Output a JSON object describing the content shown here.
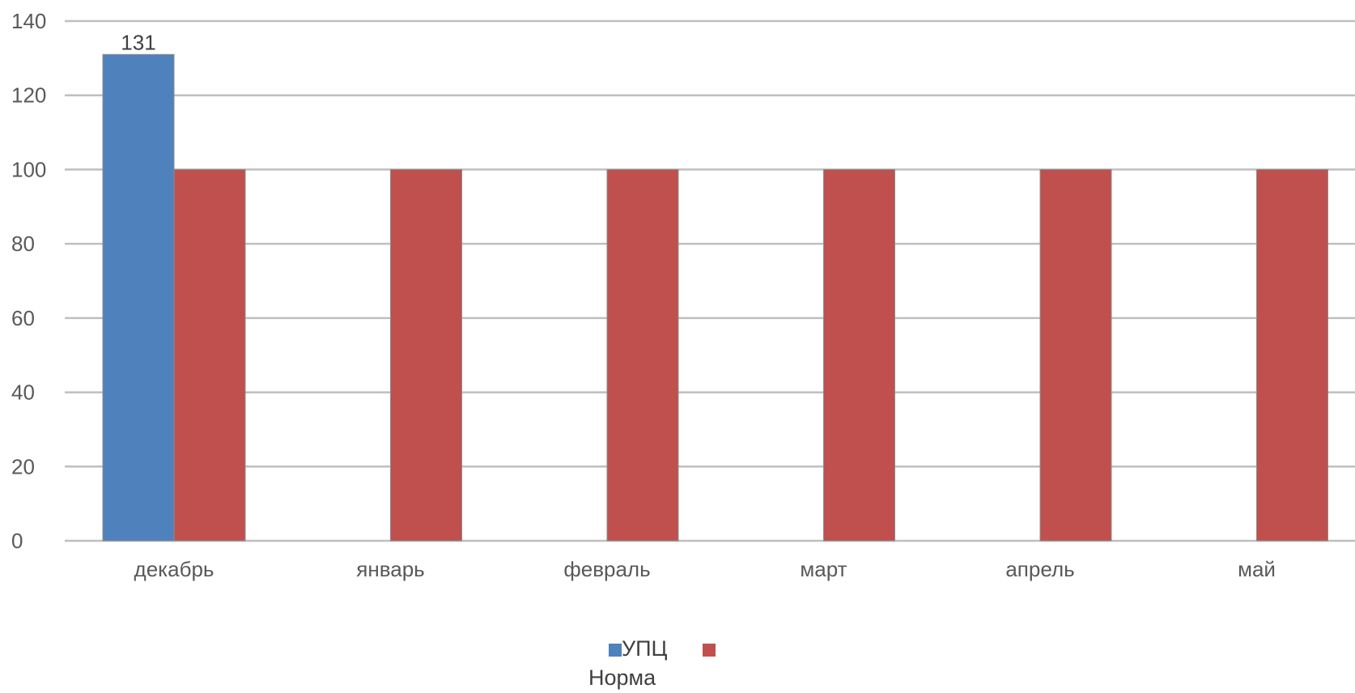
{
  "chart_data": {
    "type": "bar",
    "categories": [
      "декабрь",
      "январь",
      "февраль",
      "март",
      "апрель",
      "май"
    ],
    "series": [
      {
        "name": "УПЦ",
        "values": [
          131,
          null,
          null,
          null,
          null,
          null
        ],
        "color": "#4F81BD"
      },
      {
        "name": "Норма",
        "values": [
          100,
          100,
          100,
          100,
          100,
          100
        ],
        "color": "#C0504D"
      }
    ],
    "data_labels": [
      {
        "series": 0,
        "category": "декабрь",
        "text": "131"
      }
    ],
    "ylim": [
      0,
      140
    ],
    "yticks": [
      0,
      20,
      40,
      60,
      80,
      100,
      120,
      140
    ],
    "ytick_labels": [
      "0",
      "20",
      "40",
      "60",
      "80",
      "100",
      "120",
      "140"
    ],
    "grid": true,
    "legend_position": "bottom"
  }
}
